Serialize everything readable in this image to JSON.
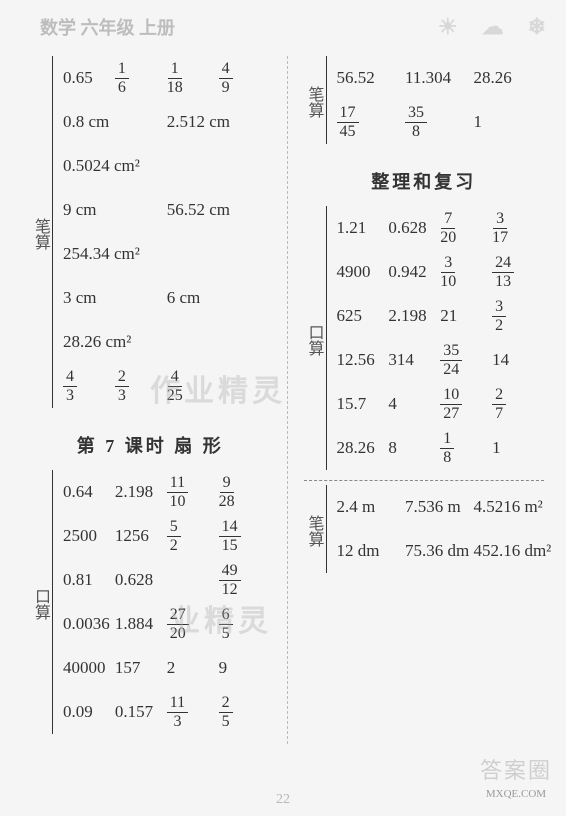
{
  "header": {
    "title": "数学 六年级 上册"
  },
  "pageNumber": "22",
  "watermarks": {
    "w1": "作业精灵",
    "w2": "业精灵",
    "brand": "答案圈",
    "site": "MXQE.COM"
  },
  "left": {
    "sec1": {
      "label": "笔算",
      "rows": [
        {
          "type": "4",
          "v": [
            "0.65",
            {
              "n": "1",
              "d": "6"
            },
            {
              "n": "1",
              "d": "18"
            },
            {
              "n": "4",
              "d": "9"
            }
          ]
        },
        {
          "type": "2",
          "v": [
            "0.8 cm",
            "2.512 cm"
          ]
        },
        {
          "type": "1",
          "v": [
            "0.5024 cm²"
          ]
        },
        {
          "type": "2",
          "v": [
            "9 cm",
            "56.52 cm"
          ]
        },
        {
          "type": "1",
          "v": [
            "254.34 cm²"
          ]
        },
        {
          "type": "2",
          "v": [
            "3 cm",
            "6 cm"
          ]
        },
        {
          "type": "1",
          "v": [
            "28.26 cm²"
          ]
        },
        {
          "type": "4",
          "v": [
            {
              "n": "4",
              "d": "3"
            },
            {
              "n": "2",
              "d": "3"
            },
            {
              "n": "4",
              "d": "25"
            },
            ""
          ]
        }
      ]
    },
    "title2": "第 7 课时  扇  形",
    "sec2": {
      "label": "口算",
      "rows": [
        {
          "type": "4",
          "v": [
            "0.64",
            "2.198",
            {
              "n": "11",
              "d": "10"
            },
            {
              "n": "9",
              "d": "28"
            }
          ]
        },
        {
          "type": "4",
          "v": [
            "2500",
            "1256",
            {
              "n": "5",
              "d": "2"
            },
            {
              "n": "14",
              "d": "15"
            }
          ]
        },
        {
          "type": "4",
          "v": [
            "0.81",
            "0.628",
            "",
            {
              "n": "49",
              "d": "12"
            }
          ]
        },
        {
          "type": "4",
          "v": [
            "0.0036",
            "1.884",
            {
              "n": "27",
              "d": "20"
            },
            {
              "n": "6",
              "d": "5"
            }
          ]
        },
        {
          "type": "4",
          "v": [
            "40000",
            "157",
            "2",
            "9"
          ]
        },
        {
          "type": "4",
          "v": [
            "0.09",
            "0.157",
            {
              "n": "11",
              "d": "3"
            },
            {
              "n": "2",
              "d": "5"
            }
          ]
        }
      ]
    }
  },
  "right": {
    "sec1": {
      "label": "笔算",
      "rows": [
        {
          "type": "3",
          "v": [
            "56.52",
            "11.304",
            "28.26"
          ]
        },
        {
          "type": "3",
          "v": [
            {
              "n": "17",
              "d": "45"
            },
            {
              "n": "35",
              "d": "8"
            },
            "1"
          ]
        }
      ]
    },
    "title2": "整理和复习",
    "sec2": {
      "label": "口算",
      "rows": [
        {
          "type": "4",
          "v": [
            "1.21",
            "0.628",
            {
              "n": "7",
              "d": "20"
            },
            {
              "n": "3",
              "d": "17"
            }
          ]
        },
        {
          "type": "4",
          "v": [
            "4900",
            "0.942",
            {
              "n": "3",
              "d": "10"
            },
            {
              "n": "24",
              "d": "13"
            }
          ]
        },
        {
          "type": "4",
          "v": [
            "625",
            "2.198",
            "21",
            {
              "n": "3",
              "d": "2"
            }
          ]
        },
        {
          "type": "4",
          "v": [
            "12.56",
            "314",
            {
              "n": "35",
              "d": "24"
            },
            "14"
          ]
        },
        {
          "type": "4",
          "v": [
            "15.7",
            "4",
            {
              "n": "10",
              "d": "27"
            },
            {
              "n": "2",
              "d": "7"
            }
          ]
        },
        {
          "type": "4",
          "v": [
            "28.26",
            "8",
            {
              "n": "1",
              "d": "8"
            },
            "1"
          ]
        }
      ]
    },
    "sec3": {
      "label": "笔算",
      "rows": [
        {
          "type": "3",
          "v": [
            "2.4 m",
            "7.536 m",
            "4.5216 m²"
          ]
        },
        {
          "type": "3",
          "v": [
            "12 dm",
            "75.36 dm",
            "452.16 dm²"
          ]
        }
      ]
    }
  }
}
